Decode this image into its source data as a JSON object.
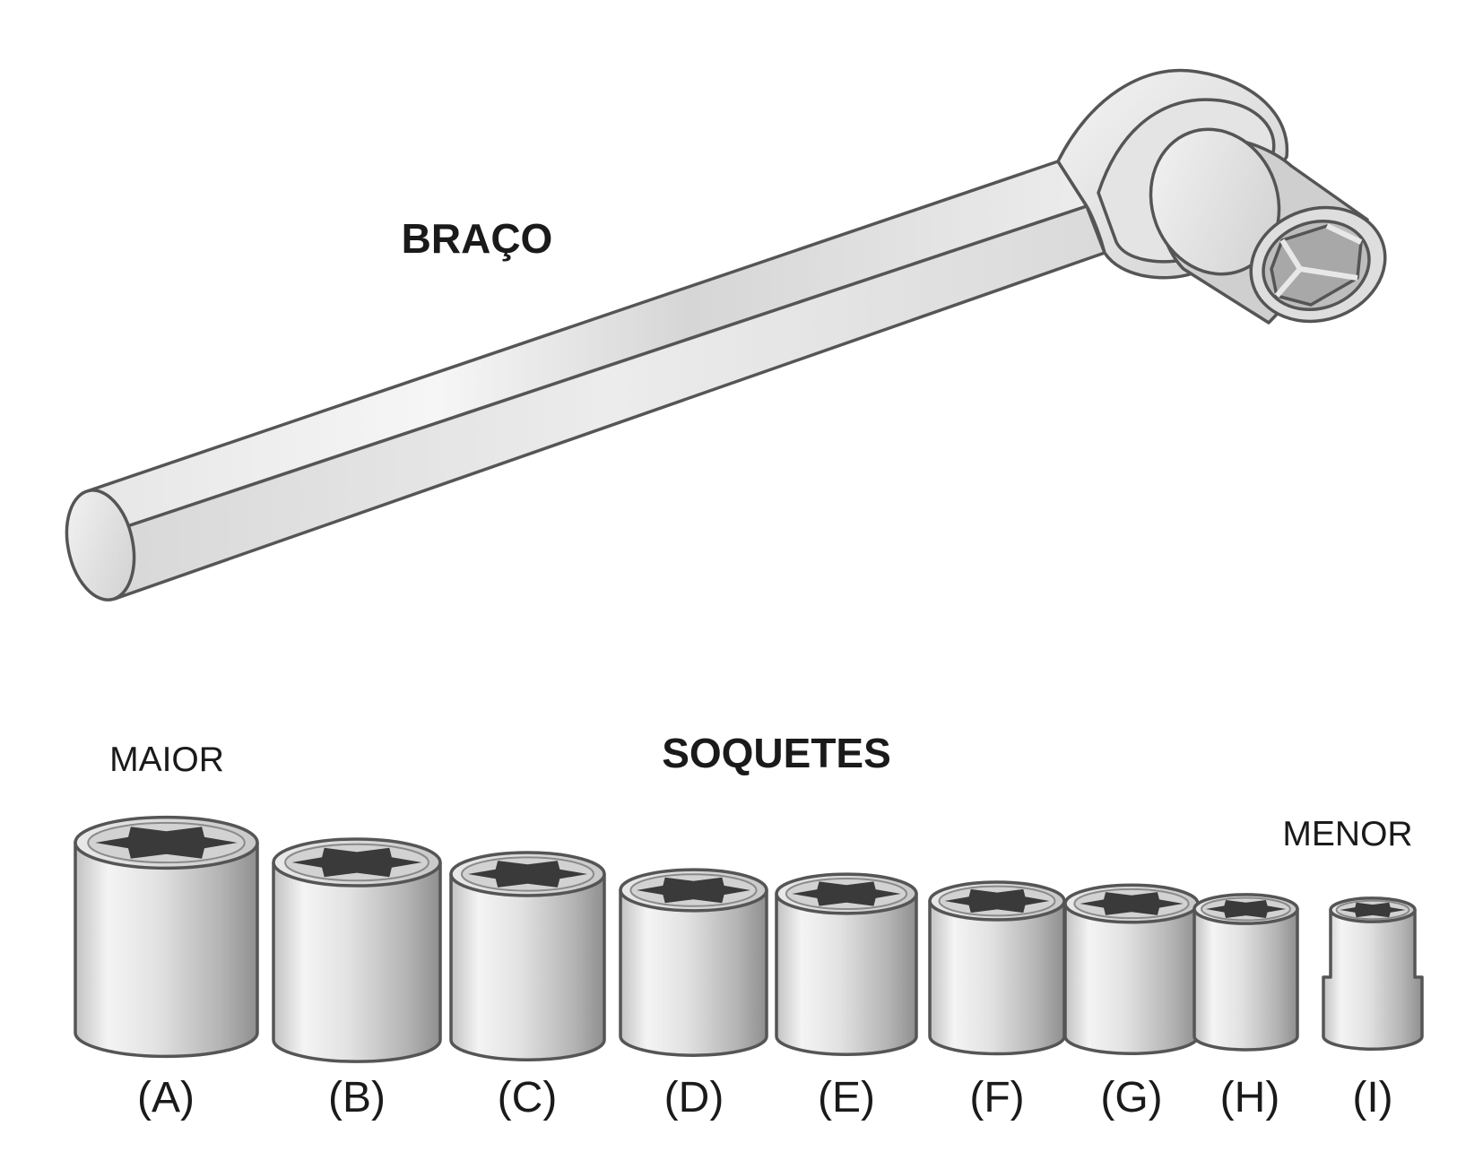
{
  "labels": {
    "arm": "BRAÇO",
    "sockets_title": "SOQUETES",
    "largest": "MAIOR",
    "smallest": "MENOR"
  },
  "sockets": [
    {
      "letter": "(A)"
    },
    {
      "letter": "(B)"
    },
    {
      "letter": "(C)"
    },
    {
      "letter": "(D)"
    },
    {
      "letter": "(E)"
    },
    {
      "letter": "(F)"
    },
    {
      "letter": "(G)"
    },
    {
      "letter": "(H)"
    },
    {
      "letter": "(I)"
    }
  ],
  "colors": {
    "metal_light": "#f6f6f6",
    "metal_mid": "#dcdcdc",
    "metal_dark": "#9a9a9a",
    "outline": "#555555",
    "hex_hole": "#3a3a3a"
  }
}
